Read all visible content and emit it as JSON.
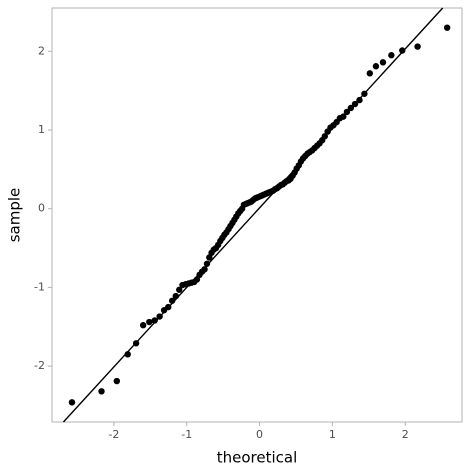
{
  "chart_data": {
    "type": "scatter",
    "x_label": "theoretical",
    "y_label": "sample",
    "x": [
      -2.576,
      -2.17,
      -1.96,
      -1.81,
      -1.695,
      -1.598,
      -1.514,
      -1.44,
      -1.372,
      -1.311,
      -1.254,
      -1.2,
      -1.15,
      -1.103,
      -1.058,
      -1.015,
      -0.974,
      -0.935,
      -0.896,
      -0.86,
      -0.824,
      -0.789,
      -0.755,
      -0.722,
      -0.69,
      -0.659,
      -0.628,
      -0.598,
      -0.568,
      -0.539,
      -0.51,
      -0.482,
      -0.454,
      -0.426,
      -0.399,
      -0.372,
      -0.345,
      -0.319,
      -0.292,
      -0.266,
      -0.24,
      -0.215,
      -0.189,
      -0.164,
      -0.138,
      -0.113,
      -0.088,
      -0.063,
      -0.038,
      -0.013,
      0.013,
      0.038,
      0.063,
      0.088,
      0.113,
      0.138,
      0.164,
      0.189,
      0.215,
      0.24,
      0.266,
      0.292,
      0.319,
      0.345,
      0.372,
      0.399,
      0.426,
      0.454,
      0.482,
      0.51,
      0.539,
      0.568,
      0.598,
      0.628,
      0.659,
      0.69,
      0.722,
      0.755,
      0.789,
      0.824,
      0.86,
      0.896,
      0.935,
      0.974,
      1.015,
      1.058,
      1.103,
      1.15,
      1.2,
      1.254,
      1.311,
      1.372,
      1.44,
      1.514,
      1.598,
      1.695,
      1.81,
      1.96,
      2.17,
      2.576
    ],
    "values": [
      -2.46,
      -2.32,
      -2.19,
      -1.85,
      -1.71,
      -1.48,
      -1.44,
      -1.42,
      -1.37,
      -1.29,
      -1.25,
      -1.17,
      -1.11,
      -1.03,
      -0.97,
      -0.96,
      -0.95,
      -0.94,
      -0.93,
      -0.9,
      -0.84,
      -0.8,
      -0.77,
      -0.7,
      -0.62,
      -0.56,
      -0.52,
      -0.5,
      -0.46,
      -0.41,
      -0.37,
      -0.33,
      -0.3,
      -0.26,
      -0.22,
      -0.18,
      -0.14,
      -0.1,
      -0.06,
      -0.03,
      0.0,
      0.05,
      0.06,
      0.07,
      0.08,
      0.09,
      0.11,
      0.13,
      0.14,
      0.15,
      0.16,
      0.17,
      0.18,
      0.19,
      0.2,
      0.21,
      0.22,
      0.23,
      0.25,
      0.26,
      0.28,
      0.3,
      0.31,
      0.33,
      0.35,
      0.36,
      0.38,
      0.42,
      0.46,
      0.51,
      0.55,
      0.6,
      0.64,
      0.67,
      0.7,
      0.72,
      0.74,
      0.77,
      0.8,
      0.83,
      0.87,
      0.92,
      0.98,
      1.03,
      1.06,
      1.1,
      1.15,
      1.17,
      1.23,
      1.28,
      1.33,
      1.38,
      1.46,
      1.72,
      1.81,
      1.86,
      1.95,
      2.01,
      2.06,
      2.3
    ],
    "color": "#000000",
    "reference_line": {
      "slope": 1.01,
      "intercept": 0.01
    },
    "xlim": [
      -2.85,
      2.78
    ],
    "ylim": [
      -2.71,
      2.55
    ],
    "xticks": [
      -2,
      -1,
      0,
      1,
      2
    ],
    "yticks": [
      -2,
      -1,
      0,
      1,
      2
    ],
    "grid": false
  }
}
